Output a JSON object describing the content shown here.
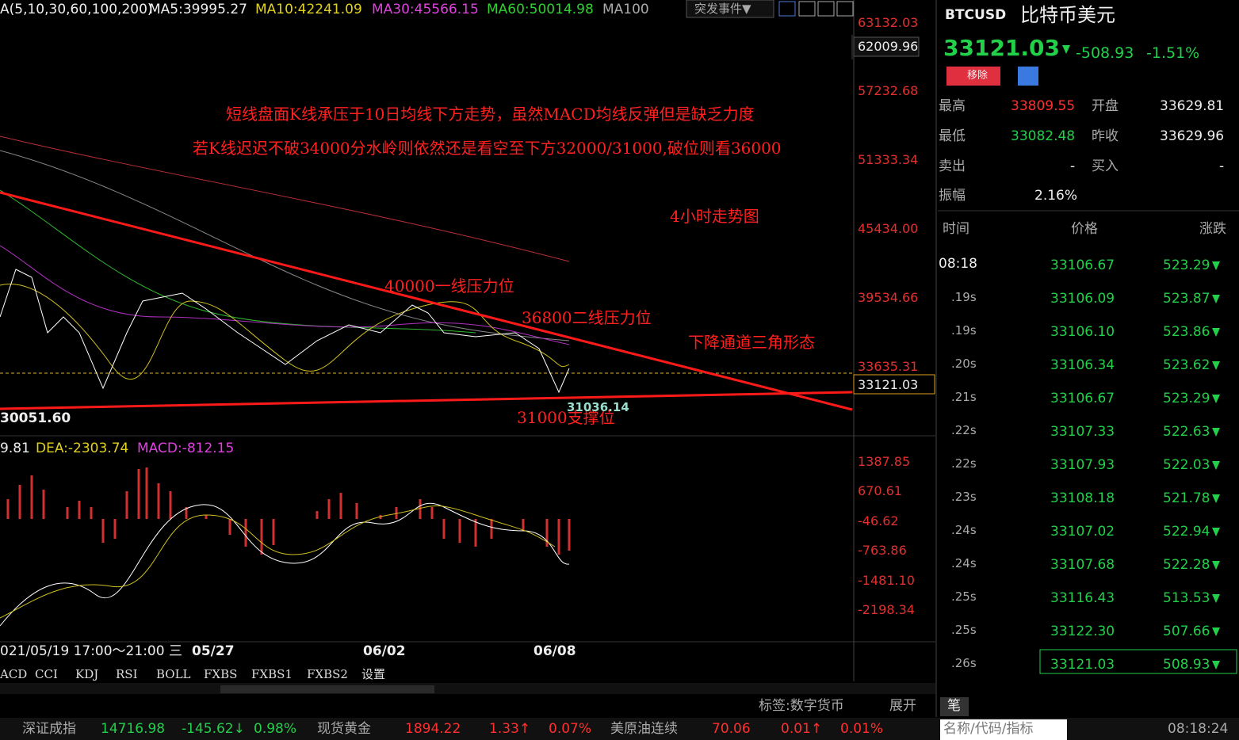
{
  "toolbar": {
    "indicator": "A(5,10,30,60,100,200)",
    "ma5": "MA5:39995.27",
    "ma10": "MA10:42241.09",
    "ma30": "MA30:45566.15",
    "ma60": "MA60:50014.98",
    "ma100": "MA100",
    "event_menu": "突发事件▼"
  },
  "price_axis": [
    "63132.03",
    "62009.96",
    "57232.68",
    "51333.34",
    "45434.00",
    "39534.66",
    "33635.31",
    "33121.03"
  ],
  "annotations": {
    "comment_1": "短线盘面K线承压于10日均线下方走势，虽然MACD均线反弹但是缺乏力度",
    "comment_2": "若K线迟迟不破34000分水岭则依然还是看空至下方32000/31000,破位则看36000",
    "timeframe": "4小时走势图",
    "resistance_1": "40000一线压力位",
    "resistance_2": "36800二线压力位",
    "pattern": "下降通道三角形态",
    "support": "31000支撑位",
    "low_mark": "31036.14",
    "range_low": "30051.60"
  },
  "macd": {
    "dif": "9.81",
    "dea": "DEA:-2303.74",
    "macd": "MACD:-812.15",
    "axis": [
      "1387.85",
      "670.61",
      "-46.62",
      "-763.86",
      "-1481.10",
      "-2198.34"
    ]
  },
  "dates": [
    "021/05/19 17:00～21:00 三",
    "05/27",
    "06/02",
    "06/08"
  ],
  "tabs": [
    "ACD",
    "CCI",
    "KDJ",
    "RSI",
    "BOLL",
    "FXBS",
    "FXBS1",
    "FXBS2",
    "设置"
  ],
  "quote": {
    "symbol": "BTCUSD",
    "name": "比特币美元",
    "price": "33121.03",
    "change": "-508.93",
    "change_pct": "-1.51%",
    "remove": "移除"
  },
  "stats": [
    [
      "最高",
      "33809.55",
      "开盘",
      "33629.81"
    ],
    [
      "最低",
      "33082.48",
      "昨收",
      "33629.96"
    ],
    [
      "卖出",
      "-",
      "买入",
      "-"
    ],
    [
      "振幅",
      "2.16%"
    ]
  ],
  "trades": {
    "header": [
      "时间",
      "价格",
      "涨跌"
    ],
    "rows": [
      [
        "08:18",
        "33106.67",
        "523.29"
      ],
      [
        ".19s",
        "33106.09",
        "523.87"
      ],
      [
        ".19s",
        "33106.10",
        "523.86"
      ],
      [
        ".20s",
        "33106.34",
        "523.62"
      ],
      [
        ".21s",
        "33106.67",
        "523.29"
      ],
      [
        ".22s",
        "33107.33",
        "522.63"
      ],
      [
        ".22s",
        "33107.93",
        "522.03"
      ],
      [
        ".23s",
        "33108.18",
        "521.78"
      ],
      [
        ".24s",
        "33107.02",
        "522.94"
      ],
      [
        ".24s",
        "33107.68",
        "522.28"
      ],
      [
        ".25s",
        "33116.43",
        "513.53"
      ],
      [
        ".25s",
        "33122.30",
        "507.66"
      ],
      [
        ".26s",
        "33121.03",
        "508.93"
      ]
    ]
  },
  "status_bar": {
    "tag": "标签:数字货币",
    "expand": "展开",
    "pen": "笔",
    "tickers": [
      [
        "深证成指",
        "14716.98",
        "-145.62↓",
        "0.98%"
      ],
      [
        "现货黄金",
        "1894.22",
        "1.33↑",
        "0.07%"
      ],
      [
        "美原油连续",
        "70.06",
        "0.01↑",
        "0.01%"
      ]
    ],
    "search": "名称/代码/指标",
    "time": "08:18:24"
  }
}
